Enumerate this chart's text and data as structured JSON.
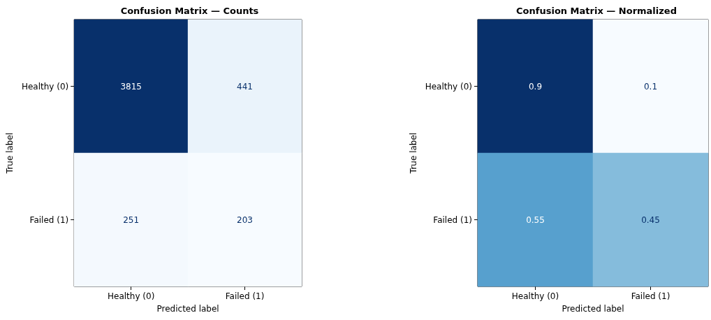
{
  "chart_data": [
    {
      "type": "heatmap",
      "title": "Confusion Matrix — Counts",
      "xlabel": "Predicted label",
      "ylabel": "True label",
      "categories": [
        "Healthy (0)",
        "Failed (1)"
      ],
      "y_categories": [
        "Healthy (0)",
        "Failed (1)"
      ],
      "cells": [
        [
          3815,
          441
        ],
        [
          251,
          203
        ]
      ],
      "data_labels": true
    },
    {
      "type": "heatmap",
      "title": "Confusion Matrix — Normalized",
      "xlabel": "Predicted label",
      "ylabel": "True label",
      "categories": [
        "Healthy (0)",
        "Failed (1)"
      ],
      "y_categories": [
        "Healthy (0)",
        "Failed (1)"
      ],
      "cells": [
        [
          0.9,
          0.1
        ],
        [
          0.55,
          0.45
        ]
      ],
      "data_labels": true
    }
  ]
}
